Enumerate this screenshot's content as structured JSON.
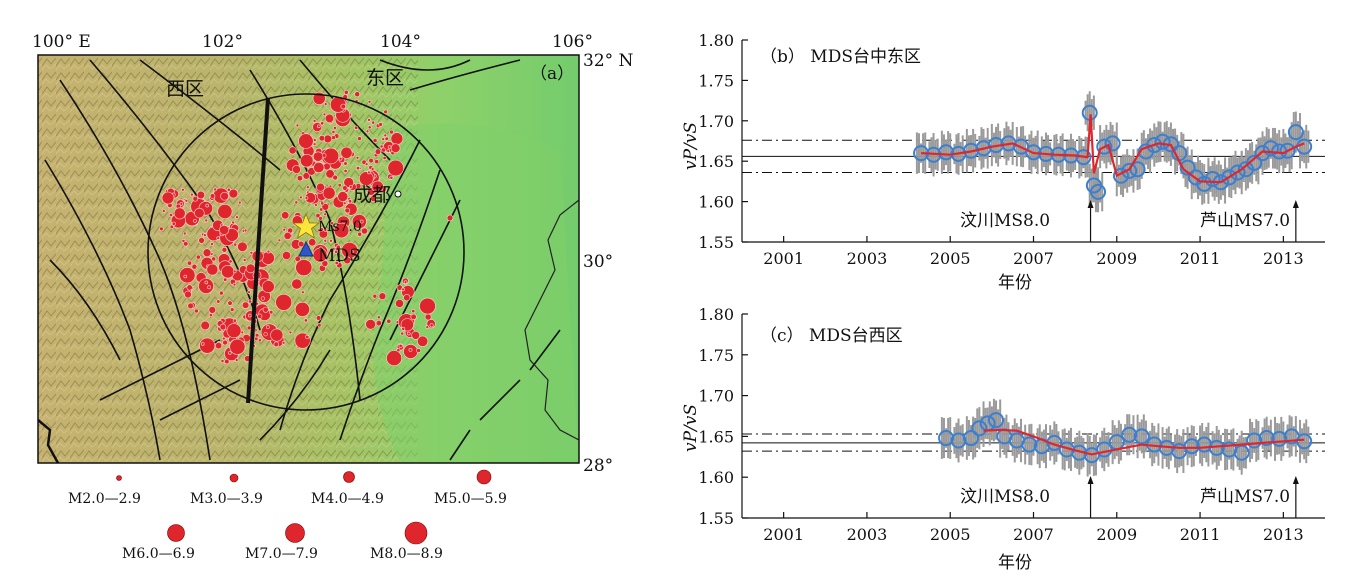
{
  "map": {
    "panel_label": "（a）",
    "lon_labels": [
      "100° E",
      "102°",
      "104°",
      "106°"
    ],
    "lat_labels": [
      "32° N",
      "30°",
      "28°"
    ],
    "west_label": "西区",
    "east_label": "东区",
    "city_label": "成都",
    "epicenter_label": "Ms7.0",
    "station_label": "MDS",
    "colors": {
      "quake": "#e0262d",
      "star": "#ffe53b",
      "station": "#2f56c8",
      "fault": "#111111"
    }
  },
  "legend": {
    "items": [
      "M2.0—2.9",
      "M3.0—3.9",
      "M4.0—4.9",
      "M5.0—5.9",
      "M6.0—6.9",
      "M7.0—7.9",
      "M8.0—8.9"
    ]
  },
  "panel_b": {
    "title": "（b） MDS台中东区",
    "ylabel": "vP/vS",
    "xlabel": "年份",
    "event1": "汶川MS8.0",
    "event2": "芦山MS7.0"
  },
  "panel_c": {
    "title": "（c） MDS台西区",
    "ylabel": "vP/vS",
    "xlabel": "年份",
    "event1": "汶川MS8.0",
    "event2": "芦山MS7.0"
  },
  "chart_data": [
    {
      "type": "scatter",
      "id": "panel_b",
      "title": "MDS台中东区",
      "xlabel": "年份",
      "ylabel": "vP/vS",
      "xlim": [
        2000,
        2014
      ],
      "ylim": [
        1.55,
        1.8
      ],
      "x_ticks": [
        2001,
        2003,
        2005,
        2007,
        2009,
        2011,
        2013
      ],
      "y_ticks": [
        "1.55",
        "1.60",
        "1.65",
        "1.70",
        "1.75",
        "1.80"
      ],
      "mean": 1.656,
      "upper_band": 1.676,
      "lower_band": 1.636,
      "events": [
        {
          "x": 2008.37,
          "label": "汶川MS8.0"
        },
        {
          "x": 2013.3,
          "label": "芦山MS7.0"
        }
      ],
      "series": [
        {
          "name": "smoothed",
          "x": [
            2004.3,
            2005.0,
            2005.5,
            2006.0,
            2006.5,
            2007.0,
            2007.5,
            2008.0,
            2008.3,
            2008.37,
            2008.45,
            2008.6,
            2008.8,
            2009.0,
            2009.3,
            2009.6,
            2010.0,
            2010.3,
            2010.6,
            2011.0,
            2011.5,
            2012.0,
            2012.5,
            2013.0,
            2013.3,
            2013.5
          ],
          "y": [
            1.66,
            1.658,
            1.662,
            1.668,
            1.672,
            1.66,
            1.658,
            1.657,
            1.655,
            1.708,
            1.635,
            1.665,
            1.67,
            1.632,
            1.64,
            1.665,
            1.672,
            1.67,
            1.64,
            1.625,
            1.624,
            1.64,
            1.662,
            1.66,
            1.668,
            1.672
          ]
        },
        {
          "name": "observations",
          "x": [
            2004.3,
            2004.6,
            2004.9,
            2005.2,
            2005.5,
            2005.8,
            2006.1,
            2006.4,
            2006.7,
            2007.0,
            2007.3,
            2007.6,
            2007.9,
            2008.2,
            2008.35,
            2008.45,
            2008.55,
            2008.7,
            2008.9,
            2009.1,
            2009.3,
            2009.5,
            2009.7,
            2009.9,
            2010.1,
            2010.3,
            2010.5,
            2010.7,
            2010.9,
            2011.1,
            2011.3,
            2011.5,
            2011.7,
            2011.9,
            2012.1,
            2012.3,
            2012.5,
            2012.7,
            2012.9,
            2013.1,
            2013.3,
            2013.5
          ],
          "y": [
            1.66,
            1.658,
            1.661,
            1.659,
            1.663,
            1.666,
            1.67,
            1.672,
            1.668,
            1.661,
            1.659,
            1.658,
            1.657,
            1.655,
            1.71,
            1.62,
            1.612,
            1.668,
            1.672,
            1.632,
            1.638,
            1.64,
            1.662,
            1.67,
            1.674,
            1.671,
            1.66,
            1.642,
            1.63,
            1.622,
            1.628,
            1.624,
            1.63,
            1.636,
            1.64,
            1.648,
            1.66,
            1.666,
            1.662,
            1.663,
            1.686,
            1.668
          ]
        }
      ]
    },
    {
      "type": "scatter",
      "id": "panel_c",
      "title": "MDS台西区",
      "xlabel": "年份",
      "ylabel": "vP/vS",
      "xlim": [
        2000,
        2014
      ],
      "ylim": [
        1.55,
        1.8
      ],
      "x_ticks": [
        2001,
        2003,
        2005,
        2007,
        2009,
        2011,
        2013
      ],
      "y_ticks": [
        "1.55",
        "1.60",
        "1.65",
        "1.70",
        "1.75",
        "1.80"
      ],
      "mean": 1.642,
      "upper_band": 1.653,
      "lower_band": 1.632,
      "events": [
        {
          "x": 2008.37,
          "label": "汶川MS8.0"
        },
        {
          "x": 2013.3,
          "label": "芦山MS7.0"
        }
      ],
      "series": [
        {
          "name": "smoothed",
          "x": [
            2005.8,
            2006.2,
            2006.6,
            2007.0,
            2007.5,
            2008.0,
            2008.4,
            2008.8,
            2009.2,
            2009.6,
            2010.0,
            2010.5,
            2011.0,
            2011.5,
            2012.0,
            2012.5,
            2013.0,
            2013.5
          ],
          "y": [
            1.657,
            1.658,
            1.657,
            1.65,
            1.64,
            1.633,
            1.628,
            1.632,
            1.636,
            1.64,
            1.638,
            1.636,
            1.636,
            1.638,
            1.64,
            1.642,
            1.644,
            1.646
          ]
        },
        {
          "name": "observations",
          "x": [
            2004.9,
            2005.2,
            2005.5,
            2005.7,
            2005.9,
            2006.1,
            2006.3,
            2006.6,
            2006.9,
            2007.2,
            2007.5,
            2007.8,
            2008.1,
            2008.4,
            2008.7,
            2009.0,
            2009.3,
            2009.6,
            2009.9,
            2010.2,
            2010.5,
            2010.8,
            2011.1,
            2011.4,
            2011.7,
            2012.0,
            2012.3,
            2012.6,
            2012.9,
            2013.2,
            2013.5
          ],
          "y": [
            1.648,
            1.645,
            1.648,
            1.66,
            1.666,
            1.67,
            1.65,
            1.645,
            1.64,
            1.638,
            1.642,
            1.634,
            1.63,
            1.627,
            1.634,
            1.643,
            1.652,
            1.65,
            1.64,
            1.636,
            1.632,
            1.638,
            1.64,
            1.636,
            1.634,
            1.63,
            1.645,
            1.648,
            1.647,
            1.65,
            1.644
          ]
        }
      ]
    }
  ]
}
